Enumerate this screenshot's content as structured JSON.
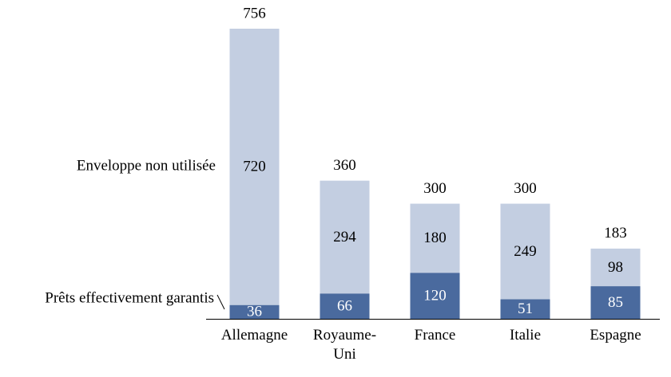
{
  "chart_data": {
    "type": "stacked-bar",
    "categories": [
      "Allemagne",
      "Royaume-Uni",
      "France",
      "Italie",
      "Espagne"
    ],
    "series": [
      {
        "name": "Prêts effectivement garantis",
        "color": "#4a6a9e",
        "values": [
          36,
          66,
          120,
          51,
          85
        ]
      },
      {
        "name": "Enveloppe non utilisée",
        "color": "#c3cee1",
        "values": [
          720,
          294,
          180,
          249,
          98
        ]
      }
    ],
    "totals": [
      756,
      360,
      300,
      300,
      183
    ]
  }
}
